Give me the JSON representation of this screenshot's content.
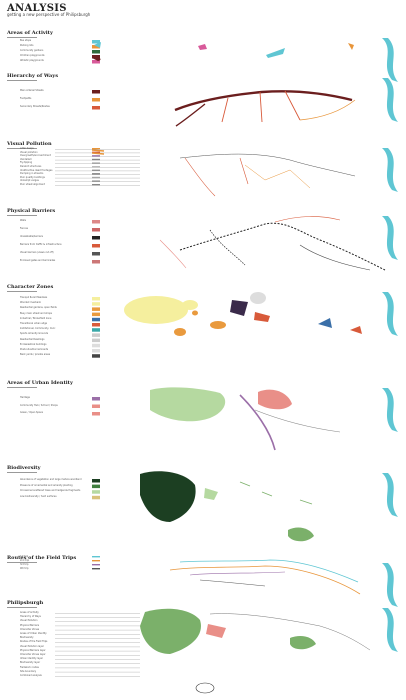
{
  "header": {
    "title": "ANALYSIS",
    "subtitle": "getting a new perspective of Philipsburgh"
  },
  "sections": [
    {
      "id": "activity",
      "title": "Areas of Activity",
      "legend": [
        "Bus stops",
        "Parking lots",
        "Community gardens",
        "Children playgrounds",
        "Athletic playgrounds"
      ]
    },
    {
      "id": "ways",
      "title": "Hierarchy of Ways",
      "legend": [
        "Main Arterial Streets",
        "Footpaths",
        "Secondary Streets/Routes"
      ]
    },
    {
      "id": "visual",
      "title": "Visual Pollution",
      "legend": [
        "Litter heaps",
        "Visual pollution",
        "Overgrowth/encroachment",
        "Vandalism",
        "Fly-tipping",
        "Derelict structures",
        "Unattractive dead frontages",
        "Dumping in streams",
        "Poor quality buildings",
        "Unkempt verges",
        "Poor street alignment"
      ]
    },
    {
      "id": "barriers",
      "title": "Physical Barriers",
      "legend": [
        "Walls",
        "Fences",
        "Unwalkable/barriers",
        "Barriers from traffic & infrastructure",
        "Visual barriers (views cut off)",
        "Enclosed gates and barricades"
      ]
    },
    {
      "id": "character",
      "title": "Character Zones",
      "legend": [
        "Tranquil Rural Meadows",
        "Wooded riverbank",
        "Residential gardens, open fields",
        "Busy main street and shops",
        "Industrial / Brownfield zone",
        "Transitional urban edge",
        "Institutional, Community, Civic",
        "Sports Amenity Grounds",
        "Residential Dwellings",
        "Ecclesiastical buildings",
        "Post-industrial remnants",
        "Back yards / private areas"
      ]
    },
    {
      "id": "identity",
      "title": "Areas of Urban Identity",
      "legend": [
        "Heritage",
        "Community Hub / School / Shops",
        "Green / Open Space"
      ]
    },
    {
      "id": "biodiversity",
      "title": "Biodiversity",
      "legend": [
        "Abundance of vegetation and large mature woodland",
        "Presence of ornamental and amenity planting",
        "Occasional scattered trees and hedgerow fragments",
        "Low biodiversity / hard surfaces"
      ]
    },
    {
      "id": "routes",
      "title": "Routes of the Field Trips",
      "legend": [
        "1st trip",
        "2nd trip",
        "3rd trip",
        "4th trip"
      ]
    },
    {
      "id": "philipsburgh",
      "title": "Philipsburgh",
      "legend": [
        "Areas of Activity",
        "Hierarchy of Ways",
        "Visual Pollution",
        "Physical Barriers",
        "Character Zones",
        "Areas of Urban Identity",
        "Biodiversity",
        "Routes of the Field Trips",
        "Visual Pollution layer",
        "Physical Barriers layer",
        "Character Zones layer",
        "Urban Identity layer",
        "Biodiversity layer",
        "Fieldwork routes",
        "Site boundary",
        "Combined analysis"
      ]
    }
  ],
  "colors": {
    "river": "#5fc6d3",
    "arterial": "#6b1e1e",
    "footpath": "#e8953a",
    "secondary": "#d85a3a",
    "wood_dark": "#1c3f22",
    "green_mid": "#7bb06a",
    "green_light": "#b5d9a0",
    "yellow": "#f5ef9e",
    "orange": "#e99a3e",
    "teal": "#3aa8a8",
    "purple": "#9b6fa8",
    "pink": "#e98f88"
  }
}
